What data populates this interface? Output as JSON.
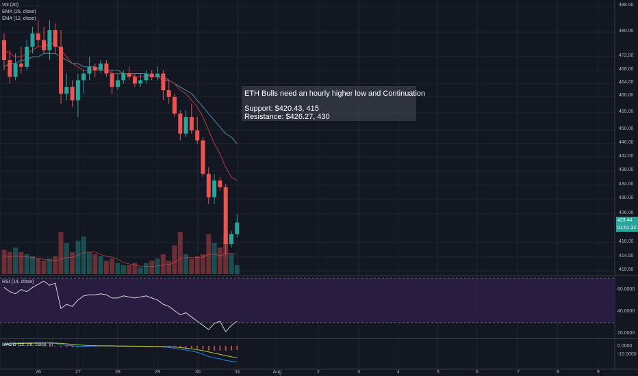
{
  "indicators": {
    "volume": "Vol (20)",
    "ema26": "EMA (26, close)",
    "ema12": "EMA (12, close)",
    "rsi": "RSI (14, close)",
    "macd": "MACD (12, 26, close, 9)"
  },
  "annotation": {
    "title": "ETH Bulls need an hourly higher low and Continuation",
    "support": "Support: $420.43, 415",
    "resistance": "Resistance: $426.27, 430"
  },
  "price_axis": [
    "488.00",
    "480.00",
    "472.00",
    "468.00",
    "464.00",
    "460.00",
    "455.00",
    "450.00",
    "446.00",
    "442.00",
    "438.00",
    "434.00",
    "430.00",
    "426.00",
    "418.00",
    "414.00",
    "410.50"
  ],
  "current_price": "423.44",
  "countdown": "01:01:32",
  "rsi_axis": [
    "60.0000",
    "40.0000",
    "20.0000"
  ],
  "macd_axis": [
    "0.0000",
    "-10.0000"
  ],
  "time_axis": [
    "26",
    "27",
    "28",
    "29",
    "30",
    "31",
    "Aug",
    "2",
    "3",
    "4",
    "5",
    "6",
    "7",
    "8",
    "9"
  ],
  "colors": {
    "background": "#131722",
    "up": "#26a69a",
    "down": "#ef5350",
    "rsi_band": "#2d1f45"
  },
  "chart_data": {
    "type": "candlestick",
    "ohlc": [
      {
        "o": 478,
        "h": 480,
        "l": 469,
        "c": 472
      },
      {
        "o": 472,
        "h": 475,
        "l": 465,
        "c": 467
      },
      {
        "o": 467,
        "h": 474,
        "l": 466,
        "c": 471
      },
      {
        "o": 471,
        "h": 476,
        "l": 468,
        "c": 470
      },
      {
        "o": 470,
        "h": 478,
        "l": 469,
        "c": 476
      },
      {
        "o": 476,
        "h": 482,
        "l": 474,
        "c": 480
      },
      {
        "o": 480,
        "h": 484,
        "l": 476,
        "c": 478
      },
      {
        "o": 478,
        "h": 482,
        "l": 474,
        "c": 475
      },
      {
        "o": 475,
        "h": 484,
        "l": 472,
        "c": 481
      },
      {
        "o": 481,
        "h": 483,
        "l": 474,
        "c": 476
      },
      {
        "o": 476,
        "h": 481,
        "l": 459,
        "c": 462
      },
      {
        "o": 462,
        "h": 468,
        "l": 460,
        "c": 464
      },
      {
        "o": 464,
        "h": 466,
        "l": 458,
        "c": 460
      },
      {
        "o": 460,
        "h": 468,
        "l": 455,
        "c": 466
      },
      {
        "o": 466,
        "h": 469,
        "l": 462,
        "c": 468
      },
      {
        "o": 468,
        "h": 473,
        "l": 466,
        "c": 470
      },
      {
        "o": 470,
        "h": 471,
        "l": 467,
        "c": 469
      },
      {
        "o": 469,
        "h": 472,
        "l": 468,
        "c": 471
      },
      {
        "o": 471,
        "h": 472,
        "l": 467,
        "c": 468
      },
      {
        "o": 468,
        "h": 469,
        "l": 462,
        "c": 464
      },
      {
        "o": 464,
        "h": 468,
        "l": 463,
        "c": 466
      },
      {
        "o": 466,
        "h": 469,
        "l": 465,
        "c": 468
      },
      {
        "o": 468,
        "h": 470,
        "l": 466,
        "c": 467
      },
      {
        "o": 467,
        "h": 468,
        "l": 464,
        "c": 465
      },
      {
        "o": 465,
        "h": 468,
        "l": 464,
        "c": 466
      },
      {
        "o": 466,
        "h": 469,
        "l": 465,
        "c": 468
      },
      {
        "o": 468,
        "h": 469,
        "l": 466,
        "c": 467
      },
      {
        "o": 467,
        "h": 470,
        "l": 466,
        "c": 468
      },
      {
        "o": 468,
        "h": 469,
        "l": 460,
        "c": 463
      },
      {
        "o": 463,
        "h": 466,
        "l": 459,
        "c": 461
      },
      {
        "o": 461,
        "h": 462,
        "l": 455,
        "c": 456
      },
      {
        "o": 456,
        "h": 457,
        "l": 448,
        "c": 450
      },
      {
        "o": 450,
        "h": 457,
        "l": 449,
        "c": 455
      },
      {
        "o": 455,
        "h": 459,
        "l": 450,
        "c": 451
      },
      {
        "o": 451,
        "h": 455,
        "l": 447,
        "c": 448
      },
      {
        "o": 448,
        "h": 449,
        "l": 437,
        "c": 438
      },
      {
        "o": 438,
        "h": 440,
        "l": 429,
        "c": 431
      },
      {
        "o": 431,
        "h": 438,
        "l": 429,
        "c": 436
      },
      {
        "o": 436,
        "h": 437,
        "l": 433,
        "c": 434
      },
      {
        "o": 434,
        "h": 435,
        "l": 414,
        "c": 417
      },
      {
        "o": 417,
        "h": 421,
        "l": 416,
        "c": 420
      },
      {
        "o": 420,
        "h": 426,
        "l": 419,
        "c": 423.44
      }
    ],
    "volume_relative": [
      0.55,
      0.5,
      0.6,
      0.5,
      0.45,
      0.4,
      0.35,
      0.3,
      0.35,
      0.4,
      0.95,
      0.7,
      0.5,
      0.75,
      0.85,
      0.5,
      0.45,
      0.4,
      0.3,
      0.35,
      0.25,
      0.2,
      0.2,
      0.25,
      0.15,
      0.25,
      0.3,
      0.35,
      0.45,
      0.3,
      0.65,
      0.95,
      0.45,
      0.35,
      0.4,
      0.45,
      0.9,
      0.7,
      0.6,
      0.9,
      0.45,
      0.2
    ],
    "ema12": [
      475,
      474,
      473,
      473,
      474,
      475,
      476,
      476,
      477,
      477,
      475,
      473,
      471,
      470,
      469,
      469,
      469,
      469,
      469,
      468,
      468,
      468,
      468,
      467,
      467,
      467,
      467,
      467,
      466,
      466,
      465,
      463,
      462,
      460,
      458,
      455,
      451,
      447,
      444,
      440,
      437,
      436
    ],
    "ema26": [
      470,
      471,
      471,
      472,
      472,
      473,
      473,
      474,
      474,
      474,
      473,
      472,
      471,
      471,
      470,
      470,
      470,
      469,
      469,
      469,
      469,
      468,
      468,
      468,
      468,
      468,
      467,
      467,
      467,
      466,
      465,
      464,
      463,
      462,
      460,
      458,
      456,
      454,
      452,
      450,
      449,
      447
    ],
    "rsi": [
      62,
      58,
      56,
      60,
      58,
      62,
      65,
      68,
      64,
      66,
      42,
      46,
      44,
      50,
      54,
      55,
      55,
      56,
      55,
      52,
      52,
      54,
      53,
      52,
      53,
      54,
      52,
      50,
      46,
      44,
      40,
      36,
      38,
      34,
      30,
      26,
      22,
      28,
      30,
      20,
      26,
      30
    ],
    "macd": [
      1.5,
      1.6,
      1.7,
      1.8,
      1.9,
      2.0,
      2.1,
      1.9,
      1.8,
      1.6,
      0.8,
      0.3,
      0.0,
      -0.2,
      -0.3,
      -0.2,
      -0.1,
      0,
      0,
      -0.1,
      -0.2,
      -0.2,
      -0.3,
      -0.3,
      -0.4,
      -0.4,
      -0.5,
      -0.5,
      -0.8,
      -1.0,
      -1.5,
      -2.2,
      -2.8,
      -3.5,
      -4.2,
      -5.5,
      -7.0,
      -8.0,
      -8.6,
      -9.6,
      -10.2,
      -10.6
    ],
    "macd_signal": [
      1.0,
      1.2,
      1.4,
      1.5,
      1.6,
      1.7,
      1.8,
      1.9,
      1.9,
      1.8,
      1.6,
      1.3,
      1.0,
      0.7,
      0.4,
      0.2,
      0.1,
      0,
      0,
      0,
      -0.1,
      -0.1,
      -0.2,
      -0.2,
      -0.3,
      -0.3,
      -0.4,
      -0.4,
      -0.5,
      -0.6,
      -0.8,
      -1.1,
      -1.5,
      -2.0,
      -2.5,
      -3.2,
      -4.0,
      -4.8,
      -5.6,
      -6.4,
      -7.2,
      -7.9
    ],
    "price_range": [
      408,
      490
    ],
    "rsi_range": [
      15,
      72
    ],
    "macd_range": [
      -14,
      4
    ]
  }
}
